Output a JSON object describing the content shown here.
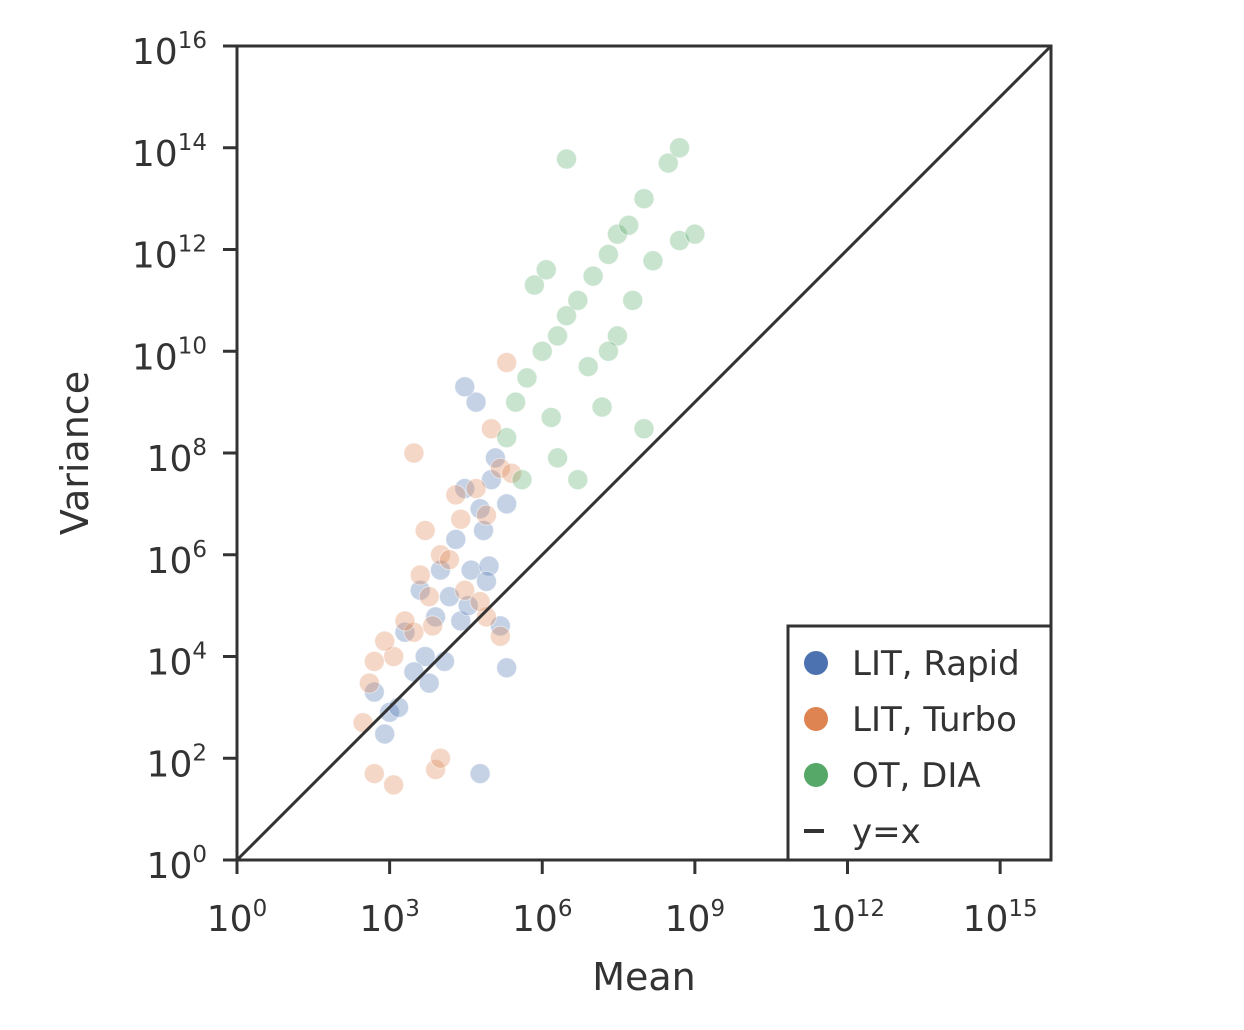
{
  "chart_data": {
    "type": "scatter",
    "xlabel": "Mean",
    "ylabel": "Variance",
    "xscale": "log",
    "yscale": "log",
    "xlim": [
      1,
      1e+16
    ],
    "ylim": [
      1,
      1e+16
    ],
    "x_ticks": [
      {
        "base": "10",
        "exp": "0"
      },
      {
        "base": "10",
        "exp": "3"
      },
      {
        "base": "10",
        "exp": "6"
      },
      {
        "base": "10",
        "exp": "9"
      },
      {
        "base": "10",
        "exp": "12"
      },
      {
        "base": "10",
        "exp": "15"
      }
    ],
    "y_ticks": [
      {
        "base": "10",
        "exp": "0"
      },
      {
        "base": "10",
        "exp": "2"
      },
      {
        "base": "10",
        "exp": "4"
      },
      {
        "base": "10",
        "exp": "6"
      },
      {
        "base": "10",
        "exp": "8"
      },
      {
        "base": "10",
        "exp": "10"
      },
      {
        "base": "10",
        "exp": "12"
      },
      {
        "base": "10",
        "exp": "14"
      },
      {
        "base": "10",
        "exp": "16"
      }
    ],
    "grid": false,
    "legend_position": "bottom-right",
    "series": [
      {
        "name": "LIT, Rapid",
        "color": "#4c72b0",
        "points": [
          [
            15000,
            150000
          ],
          [
            8000,
            60000
          ],
          [
            40000,
            500000
          ],
          [
            20000,
            2000000
          ],
          [
            60000,
            8000000
          ],
          [
            100000,
            30000000
          ],
          [
            120000,
            80000000
          ],
          [
            30000,
            20000000
          ],
          [
            5000,
            10000
          ],
          [
            3000,
            5000
          ],
          [
            2000,
            30000
          ],
          [
            10000,
            500000
          ],
          [
            70000,
            3000000
          ],
          [
            150000,
            40000
          ],
          [
            90000,
            600000
          ],
          [
            25000,
            50000
          ],
          [
            4000,
            200000
          ],
          [
            200000,
            10000000
          ],
          [
            50000,
            1000000000
          ],
          [
            30000,
            2000000000
          ],
          [
            500,
            2000
          ],
          [
            1000,
            800
          ],
          [
            1500,
            1000
          ],
          [
            800,
            300
          ],
          [
            60000,
            50
          ],
          [
            200000,
            6000
          ],
          [
            6000,
            3000
          ],
          [
            12000,
            8000
          ],
          [
            35000,
            100000
          ],
          [
            80000,
            300000
          ]
        ]
      },
      {
        "name": "LIT, Turbo",
        "color": "#dd8452",
        "points": [
          [
            3000,
            30000
          ],
          [
            1200,
            10000
          ],
          [
            6000,
            150000
          ],
          [
            10000,
            1000000
          ],
          [
            25000,
            5000000
          ],
          [
            50000,
            20000000
          ],
          [
            150000,
            50000000
          ],
          [
            80000,
            6000000
          ],
          [
            2000,
            50000
          ],
          [
            800,
            20000
          ],
          [
            500,
            8000
          ],
          [
            4000,
            400000
          ],
          [
            15000,
            800000
          ],
          [
            30000,
            200000
          ],
          [
            7000,
            40000
          ],
          [
            5000,
            3000000
          ],
          [
            20000,
            15000000
          ],
          [
            250000,
            40000000
          ],
          [
            100000,
            300000000
          ],
          [
            200000,
            6000000000
          ],
          [
            300,
            500
          ],
          [
            500,
            50
          ],
          [
            1200,
            30
          ],
          [
            8000,
            60
          ],
          [
            10000,
            100
          ],
          [
            80000,
            60000
          ],
          [
            150000,
            25000
          ],
          [
            3000,
            100000000
          ],
          [
            60000,
            120000
          ],
          [
            400,
            3000
          ]
        ]
      },
      {
        "name": "OT, DIA",
        "color": "#55a868",
        "points": [
          [
            1000000,
            10000000000
          ],
          [
            3000000,
            50000000000
          ],
          [
            10000000,
            300000000000
          ],
          [
            30000000,
            2000000000000
          ],
          [
            100000000,
            10000000000000
          ],
          [
            300000000,
            50000000000000
          ],
          [
            500000000,
            100000000000000
          ],
          [
            3000000,
            60000000000000
          ],
          [
            500000000,
            1500000000000
          ],
          [
            1000000000,
            2000000000000
          ],
          [
            100000000,
            300000000
          ],
          [
            300000,
            1000000000
          ],
          [
            500000,
            3000000000
          ],
          [
            2000000,
            20000000000
          ],
          [
            5000000,
            100000000000
          ],
          [
            20000000,
            800000000000
          ],
          [
            50000000,
            3000000000000
          ],
          [
            8000000,
            5000000000
          ],
          [
            15000000,
            800000000
          ],
          [
            30000000,
            20000000000
          ],
          [
            200000,
            200000000
          ],
          [
            400000,
            30000000
          ],
          [
            1500000,
            500000000
          ],
          [
            2000000,
            80000000
          ],
          [
            5000000,
            30000000
          ],
          [
            20000000,
            10000000000
          ],
          [
            60000000,
            100000000000
          ],
          [
            150000000,
            600000000000
          ],
          [
            700000,
            200000000000
          ],
          [
            1200000,
            400000000000
          ]
        ]
      }
    ],
    "reference_line": {
      "name": "y=x",
      "color": "#333333"
    }
  }
}
